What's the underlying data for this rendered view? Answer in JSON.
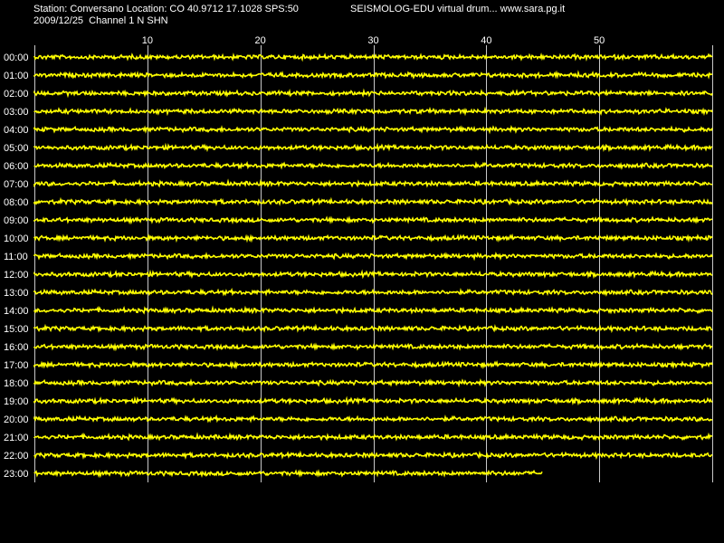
{
  "header": {
    "station_line": "Station: Conversano Location: CO 40.9712 17.1028 SPS:50",
    "credit_line": "SEISMOLOG-EDU virtual drum... www.sara.pg.it",
    "date_line": "2009/12/25  Channel 1 N SHN"
  },
  "chart_data": {
    "type": "line",
    "title": "",
    "xlabel": "",
    "ylabel": "",
    "x_unit": "minutes",
    "xlim": [
      0,
      60
    ],
    "x_ticks": [
      10,
      20,
      30,
      40,
      50
    ],
    "grid": true,
    "colors": {
      "background": "#000000",
      "trace": "#ffff00",
      "grid": "#c8c8c8",
      "text": "#ffffff"
    },
    "rows": [
      {
        "hour": "00:00",
        "end_minute": 60
      },
      {
        "hour": "01:00",
        "end_minute": 60
      },
      {
        "hour": "02:00",
        "end_minute": 60
      },
      {
        "hour": "03:00",
        "end_minute": 60
      },
      {
        "hour": "04:00",
        "end_minute": 60
      },
      {
        "hour": "05:00",
        "end_minute": 60
      },
      {
        "hour": "06:00",
        "end_minute": 60
      },
      {
        "hour": "07:00",
        "end_minute": 60
      },
      {
        "hour": "08:00",
        "end_minute": 60
      },
      {
        "hour": "09:00",
        "end_minute": 60
      },
      {
        "hour": "10:00",
        "end_minute": 60
      },
      {
        "hour": "11:00",
        "end_minute": 60
      },
      {
        "hour": "12:00",
        "end_minute": 60
      },
      {
        "hour": "13:00",
        "end_minute": 60
      },
      {
        "hour": "14:00",
        "end_minute": 60
      },
      {
        "hour": "15:00",
        "end_minute": 60
      },
      {
        "hour": "16:00",
        "end_minute": 60
      },
      {
        "hour": "17:00",
        "end_minute": 60
      },
      {
        "hour": "18:00",
        "end_minute": 60
      },
      {
        "hour": "19:00",
        "end_minute": 60
      },
      {
        "hour": "20:00",
        "end_minute": 60
      },
      {
        "hour": "21:00",
        "end_minute": 60
      },
      {
        "hour": "22:00",
        "end_minute": 60
      },
      {
        "hour": "23:00",
        "end_minute": 45
      }
    ]
  }
}
